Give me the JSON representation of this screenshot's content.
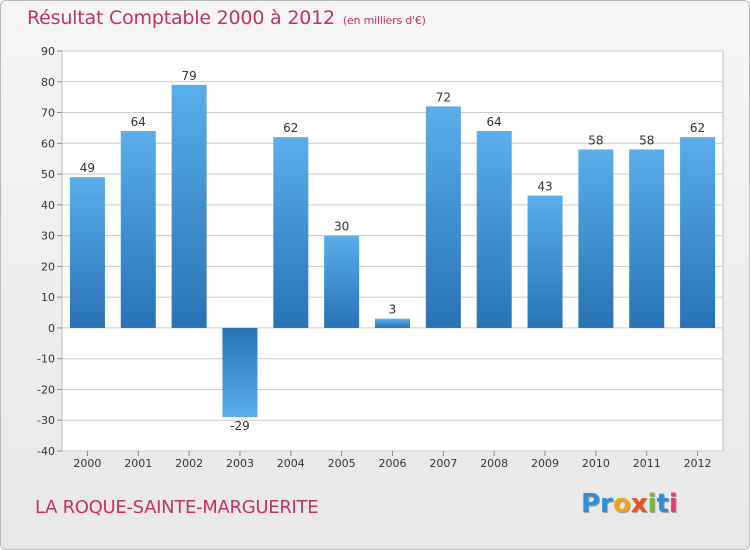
{
  "header": {
    "title": "Résultat Comptable 2000 à 2012",
    "subtitle": "(en milliers d'€)"
  },
  "footer": {
    "commune": "LA ROQUE-SAINTE-MARGUERITE",
    "logo_parts": [
      "Pr",
      "o",
      "x",
      "i",
      "t",
      "i"
    ]
  },
  "colors": {
    "title": "#c2335d",
    "bar_light": "#5aaeea",
    "bar_dark": "#2773b5",
    "grid": "#cccccc"
  },
  "chart_data": {
    "type": "bar",
    "title": "Résultat Comptable 2000 à 2012",
    "subtitle": "(en milliers d'€)",
    "categories": [
      "2000",
      "2001",
      "2002",
      "2003",
      "2004",
      "2005",
      "2006",
      "2007",
      "2008",
      "2009",
      "2010",
      "2011",
      "2012"
    ],
    "values": [
      49,
      64,
      79,
      -29,
      62,
      30,
      3,
      72,
      64,
      43,
      58,
      58,
      62
    ],
    "ylim": [
      -40,
      90
    ],
    "yticks": [
      90,
      80,
      70,
      60,
      50,
      40,
      30,
      20,
      10,
      0,
      -10,
      -20,
      -30,
      -40
    ],
    "grid": true,
    "legend": "none"
  }
}
